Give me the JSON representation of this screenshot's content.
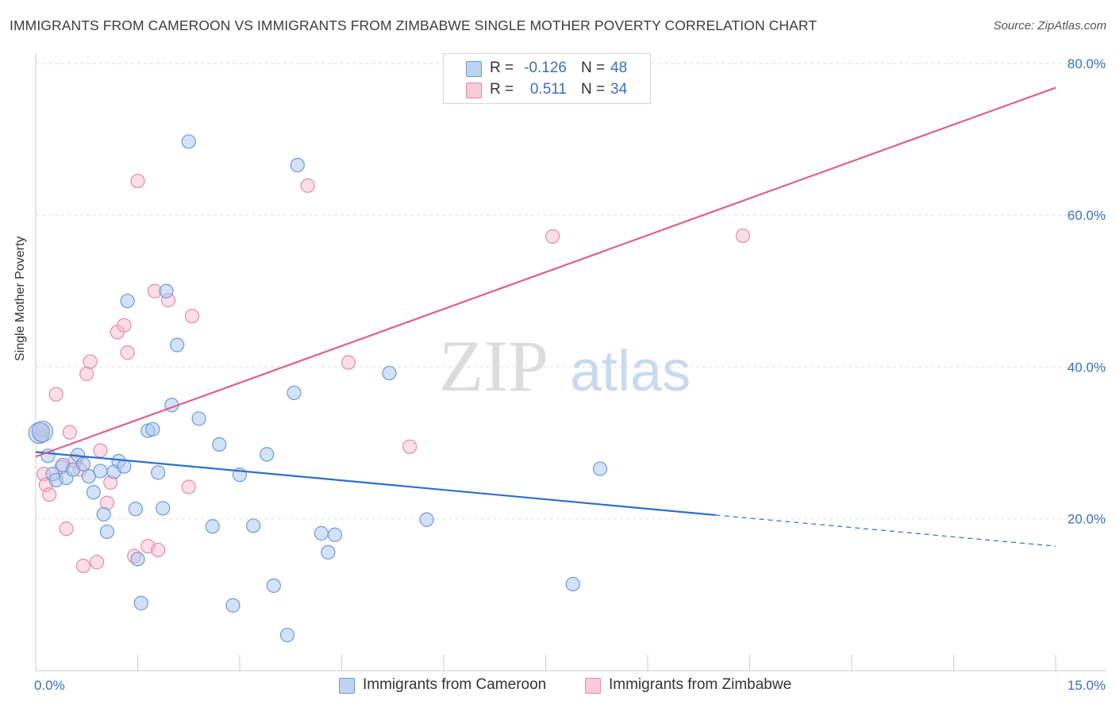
{
  "header": {
    "title": "IMMIGRANTS FROM CAMEROON VS IMMIGRANTS FROM ZIMBABWE SINGLE MOTHER POVERTY CORRELATION CHART",
    "source": "Source: ZipAtlas.com"
  },
  "watermark": {
    "zip": "ZIP",
    "atlas": "atlas"
  },
  "legend": {
    "r_label": "R =",
    "n_label": "N =",
    "cameroon": {
      "r": "-0.126",
      "n": "48"
    },
    "zimbabwe": {
      "r": "0.511",
      "n": "34"
    }
  },
  "chart_data": {
    "type": "scatter",
    "title": "IMMIGRANTS FROM CAMEROON VS IMMIGRANTS FROM ZIMBABWE SINGLE MOTHER POVERTY CORRELATION CHART",
    "ylabel": "Single Mother Poverty",
    "xlabel": "",
    "xlim": [
      0,
      15
    ],
    "ylim": [
      0,
      82
    ],
    "x_tick_labels": [
      "0.0%",
      "15.0%"
    ],
    "y_ticks": [
      20,
      40,
      60,
      80
    ],
    "y_tick_labels": [
      "20.0%",
      "40.0%",
      "60.0%",
      "80.0%"
    ],
    "grid": true,
    "legend_position": "top-center",
    "colors": {
      "cameroon_fill": "#a9c6ef",
      "cameroon_stroke": "#6d9ad8",
      "cameroon_line": "#2d6fcc",
      "zimbabwe_fill": "#f6b8cb",
      "zimbabwe_stroke": "#e68aa8",
      "zimbabwe_line": "#e0608a",
      "tick_label": "#3a6fc4"
    },
    "series": [
      {
        "name": "Immigrants from Cameroon",
        "r": -0.126,
        "n": 48,
        "trend": {
          "x0": 0,
          "y0": 28.8,
          "x1": 10.0,
          "y1": 20.5,
          "dash_to_x": 15,
          "dash_to_y": 16.4
        },
        "points": [
          [
            0.05,
            31.3
          ],
          [
            0.1,
            31.5
          ],
          [
            0.18,
            28.3
          ],
          [
            0.25,
            25.9
          ],
          [
            0.3,
            25.1
          ],
          [
            0.4,
            27.1
          ],
          [
            0.45,
            25.4
          ],
          [
            0.55,
            26.5
          ],
          [
            0.62,
            28.4
          ],
          [
            0.7,
            27.2
          ],
          [
            0.78,
            25.6
          ],
          [
            0.85,
            23.5
          ],
          [
            0.95,
            26.3
          ],
          [
            1.0,
            20.6
          ],
          [
            1.05,
            18.3
          ],
          [
            1.15,
            26.2
          ],
          [
            1.22,
            27.6
          ],
          [
            1.3,
            26.9
          ],
          [
            1.35,
            48.7
          ],
          [
            1.47,
            21.3
          ],
          [
            1.5,
            14.7
          ],
          [
            1.55,
            8.9
          ],
          [
            1.65,
            31.6
          ],
          [
            1.72,
            31.8
          ],
          [
            1.8,
            26.1
          ],
          [
            1.87,
            21.4
          ],
          [
            1.92,
            50.0
          ],
          [
            2.0,
            35.0
          ],
          [
            2.08,
            42.9
          ],
          [
            2.25,
            69.7
          ],
          [
            2.4,
            33.2
          ],
          [
            2.7,
            29.8
          ],
          [
            2.6,
            19.0
          ],
          [
            2.9,
            8.6
          ],
          [
            3.0,
            25.8
          ],
          [
            3.2,
            19.1
          ],
          [
            3.4,
            28.5
          ],
          [
            3.5,
            11.2
          ],
          [
            3.7,
            4.7
          ],
          [
            3.8,
            36.6
          ],
          [
            3.85,
            66.6
          ],
          [
            4.2,
            18.1
          ],
          [
            4.3,
            15.6
          ],
          [
            4.4,
            17.9
          ],
          [
            5.2,
            39.2
          ],
          [
            5.75,
            19.9
          ],
          [
            7.9,
            11.4
          ],
          [
            8.3,
            26.6
          ]
        ]
      },
      {
        "name": "Immigrants from Zimbabwe",
        "r": 0.511,
        "n": 34,
        "trend": {
          "x0": 0,
          "y0": 28.2,
          "x1": 15,
          "y1": 76.8
        },
        "points": [
          [
            0.08,
            31.0
          ],
          [
            0.12,
            25.9
          ],
          [
            0.15,
            24.5
          ],
          [
            0.2,
            23.2
          ],
          [
            0.3,
            36.4
          ],
          [
            0.38,
            26.8
          ],
          [
            0.45,
            18.7
          ],
          [
            0.5,
            31.4
          ],
          [
            0.58,
            27.6
          ],
          [
            0.65,
            26.5
          ],
          [
            0.7,
            13.8
          ],
          [
            0.75,
            39.1
          ],
          [
            0.8,
            40.7
          ],
          [
            0.9,
            14.3
          ],
          [
            0.95,
            29.0
          ],
          [
            1.05,
            22.1
          ],
          [
            1.1,
            24.8
          ],
          [
            1.2,
            44.6
          ],
          [
            1.3,
            45.5
          ],
          [
            1.35,
            41.9
          ],
          [
            1.45,
            15.1
          ],
          [
            1.5,
            64.5
          ],
          [
            1.65,
            16.4
          ],
          [
            1.75,
            50.0
          ],
          [
            1.8,
            15.9
          ],
          [
            1.95,
            48.8
          ],
          [
            2.25,
            24.2
          ],
          [
            2.3,
            46.7
          ],
          [
            4.0,
            63.9
          ],
          [
            4.6,
            40.6
          ],
          [
            5.5,
            29.5
          ],
          [
            7.6,
            57.2
          ],
          [
            10.4,
            57.3
          ],
          [
            0.1,
            31.7
          ]
        ]
      }
    ]
  },
  "bottom_legend": {
    "cameroon_label": "Immigrants from Cameroon",
    "zimbabwe_label": "Immigrants from Zimbabwe"
  }
}
